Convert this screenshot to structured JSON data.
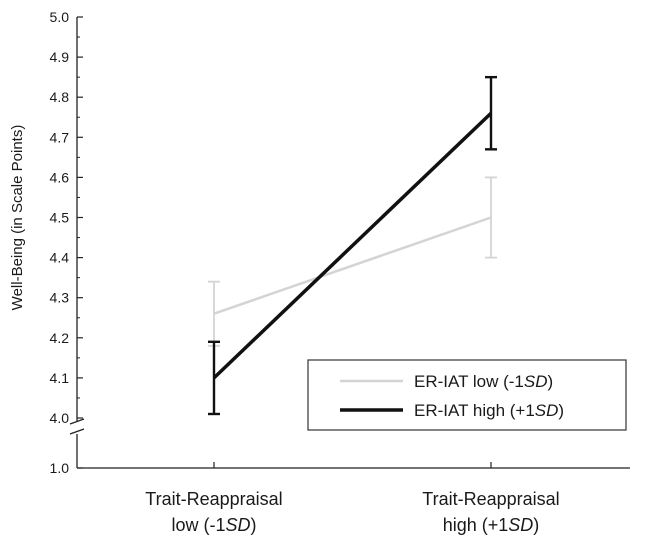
{
  "chart_data": {
    "type": "line",
    "ylabel": "Well-Being (in Scale Points)",
    "xlabel": "",
    "categories": [
      [
        "Trait-Reappraisal",
        "low (-1",
        "SD",
        ")"
      ],
      [
        "Trait-Reappraisal",
        "high (+1",
        "SD",
        ")"
      ]
    ],
    "y_ticks": [
      "1.0",
      "4.0",
      "4.1",
      "4.2",
      "4.3",
      "4.4",
      "4.5",
      "4.6",
      "4.7",
      "4.8",
      "4.9",
      "5.0"
    ],
    "ylim": [
      4.0,
      5.0
    ],
    "axis_break": {
      "below": 4.0,
      "bottom_tick": 1.0
    },
    "series": [
      {
        "name": [
          "ER-IAT low (-1",
          "SD",
          ")"
        ],
        "color": "#d4d4d4",
        "line_width": 2.5,
        "values": [
          4.26,
          4.5
        ],
        "error": [
          0.08,
          0.1
        ]
      },
      {
        "name": [
          "ER-IAT high (+1",
          "SD",
          ")"
        ],
        "color": "#111111",
        "line_width": 3.5,
        "values": [
          4.1,
          4.76
        ],
        "error": [
          0.09,
          0.09
        ]
      }
    ],
    "legend": {
      "position": "bottom-right"
    },
    "grid": false
  }
}
